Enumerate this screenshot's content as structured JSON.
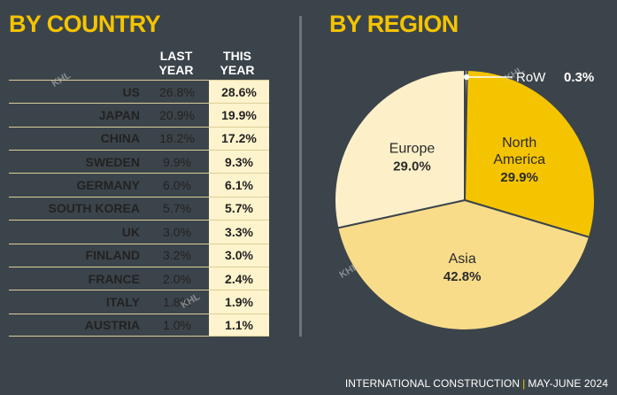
{
  "headers": {
    "by_country": "BY COUNTRY",
    "by_region": "BY REGION"
  },
  "table": {
    "col_last_year": "LAST\nYEAR",
    "col_this_year": "THIS\nYEAR",
    "rows": [
      {
        "country": "US",
        "last": "26.8%",
        "this": "28.6%"
      },
      {
        "country": "JAPAN",
        "last": "20.9%",
        "this": "19.9%"
      },
      {
        "country": "CHINA",
        "last": "18.2%",
        "this": "17.2%"
      },
      {
        "country": "SWEDEN",
        "last": "9.9%",
        "this": "9.3%"
      },
      {
        "country": "GERMANY",
        "last": "6.0%",
        "this": "6.1%"
      },
      {
        "country": "SOUTH KOREA",
        "last": "5.7%",
        "this": "5.7%"
      },
      {
        "country": "UK",
        "last": "3.0%",
        "this": "3.3%"
      },
      {
        "country": "FINLAND",
        "last": "3.2%",
        "this": "3.0%"
      },
      {
        "country": "FRANCE",
        "last": "2.0%",
        "this": "2.4%"
      },
      {
        "country": "ITALY",
        "last": "1.8%",
        "this": "1.9%"
      },
      {
        "country": "AUSTRIA",
        "last": "1.0%",
        "this": "1.1%"
      }
    ]
  },
  "chart_data": {
    "type": "pie",
    "title": "BY REGION",
    "slices": [
      {
        "label": "RoW",
        "value": 0.3,
        "display": "0.3%",
        "color": "#ffffff"
      },
      {
        "label": "North\nAmerica",
        "value": 29.9,
        "display": "29.9%",
        "color": "#f5c400"
      },
      {
        "label": "Asia",
        "value": 42.8,
        "display": "42.8%",
        "color": "#f8dc8a"
      },
      {
        "label": "Europe",
        "value": 29.0,
        "display": "29.0%",
        "color": "#fdf0c9"
      }
    ]
  },
  "watermark": "KHL",
  "footer": {
    "publication": "INTERNATIONAL CONSTRUCTION",
    "separator": "|",
    "issue": "MAY-JUNE 2024"
  },
  "colors": {
    "background": "#3c444b",
    "accent": "#f5c400",
    "highlight_column": "#fdf3cc"
  }
}
